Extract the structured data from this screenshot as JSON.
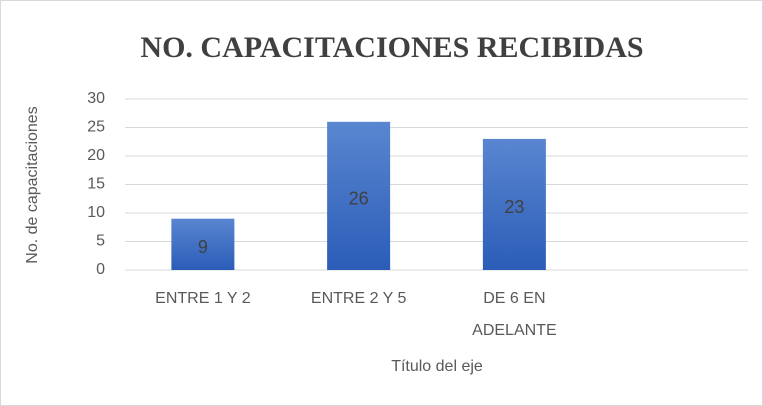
{
  "chart_data": {
    "type": "bar",
    "title": "NO. CAPACITACIONES RECIBIDAS",
    "y_label": "No. de capacitaciones",
    "x_label": "Título del eje",
    "categories": [
      "ENTRE 1 Y 2",
      "ENTRE 2 Y 5",
      "DE 6 EN ADELANTE",
      null
    ],
    "values": [
      9,
      26,
      23,
      null
    ],
    "color": "#4472c4",
    "ylim": [
      0,
      30
    ],
    "yticks": [
      0,
      5,
      10,
      15,
      20,
      25,
      30
    ],
    "grid": true
  }
}
